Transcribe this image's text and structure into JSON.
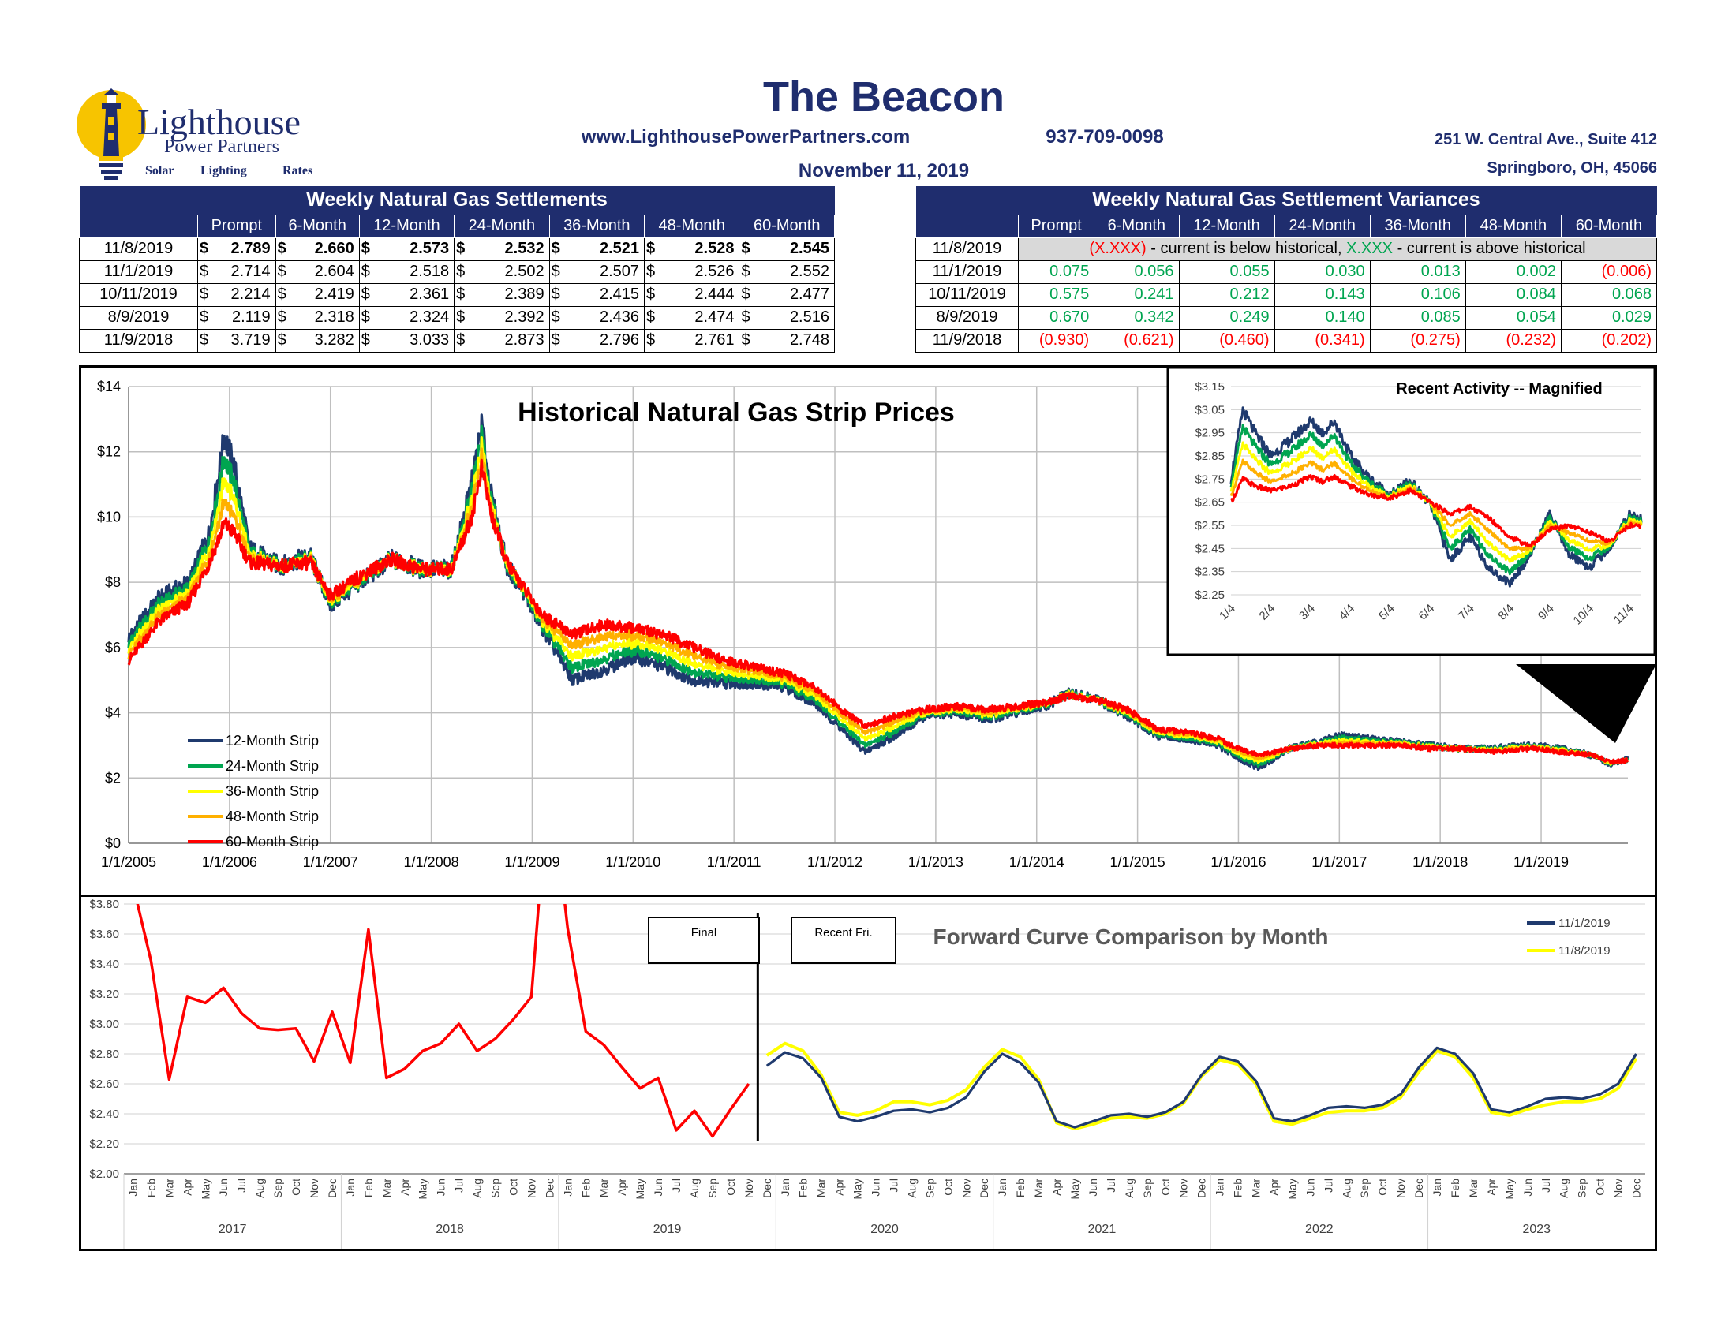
{
  "header": {
    "title": "The Beacon",
    "website": "www.LighthousePowerPartners.com",
    "phone": "937-709-0098",
    "date": "November 11, 2019",
    "address1": "251 W. Central Ave., Suite 412",
    "address2": "Springboro, OH, 45066"
  },
  "logo": {
    "name": "Lighthouse",
    "sub": "Power Partners",
    "tagline": [
      "Solar",
      "Lighting",
      "Rates"
    ],
    "colors": {
      "bulb": "#f7c400",
      "tower": "#1f2d6e"
    }
  },
  "colors": {
    "navy": "#1f2d6e",
    "m12": "#1f3a6e",
    "m24": "#00a550",
    "m36": "#ffff00",
    "m48": "#ffb000",
    "m60": "#ff0000",
    "positive": "#00a550",
    "negative": "#ff0000"
  },
  "settlements": {
    "title": "Weekly Natural Gas Settlements",
    "columns": [
      "Prompt",
      "6-Month",
      "12-Month",
      "24-Month",
      "36-Month",
      "48-Month",
      "60-Month"
    ],
    "currency": "$",
    "rows": [
      {
        "date": "11/8/2019",
        "bold": true,
        "values": [
          "2.789",
          "2.660",
          "2.573",
          "2.532",
          "2.521",
          "2.528",
          "2.545"
        ]
      },
      {
        "date": "11/1/2019",
        "bold": false,
        "values": [
          "2.714",
          "2.604",
          "2.518",
          "2.502",
          "2.507",
          "2.526",
          "2.552"
        ]
      },
      {
        "date": "10/11/2019",
        "bold": false,
        "values": [
          "2.214",
          "2.419",
          "2.361",
          "2.389",
          "2.415",
          "2.444",
          "2.477"
        ]
      },
      {
        "date": "8/9/2019",
        "bold": false,
        "values": [
          "2.119",
          "2.318",
          "2.324",
          "2.392",
          "2.436",
          "2.474",
          "2.516"
        ]
      },
      {
        "date": "11/9/2018",
        "bold": false,
        "values": [
          "3.719",
          "3.282",
          "3.033",
          "2.873",
          "2.796",
          "2.761",
          "2.748"
        ]
      }
    ]
  },
  "variances": {
    "title": "Weekly Natural Gas Settlement Variances",
    "columns": [
      "Prompt",
      "6-Month",
      "12-Month",
      "24-Month",
      "36-Month",
      "48-Month",
      "60-Month"
    ],
    "legend_row": {
      "date": "11/8/2019",
      "neg_sample": "(X.XXX)",
      "mid_text": " - current is below historical, ",
      "pos_sample": "X.XXX",
      "end_text": " - current is above historical"
    },
    "rows": [
      {
        "date": "11/1/2019",
        "values": [
          "0.075",
          "0.056",
          "0.055",
          "0.030",
          "0.013",
          "0.002",
          "(0.006)"
        ]
      },
      {
        "date": "10/11/2019",
        "values": [
          "0.575",
          "0.241",
          "0.212",
          "0.143",
          "0.106",
          "0.084",
          "0.068"
        ]
      },
      {
        "date": "8/9/2019",
        "values": [
          "0.670",
          "0.342",
          "0.249",
          "0.140",
          "0.085",
          "0.054",
          "0.029"
        ]
      },
      {
        "date": "11/9/2018",
        "values": [
          "(0.930)",
          "(0.621)",
          "(0.460)",
          "(0.341)",
          "(0.275)",
          "(0.232)",
          "(0.202)"
        ]
      }
    ]
  },
  "chart_data": [
    {
      "type": "line",
      "title": "Historical Natural Gas Strip Prices",
      "ylim": [
        0,
        14
      ],
      "y_ticks": [
        "$0",
        "$2",
        "$4",
        "$6",
        "$8",
        "$10",
        "$12",
        "$14"
      ],
      "x_ticks": [
        "1/1/2005",
        "1/1/2006",
        "1/1/2007",
        "1/1/2008",
        "1/1/2009",
        "1/1/2010",
        "1/1/2011",
        "1/1/2012",
        "1/1/2013",
        "1/1/2014",
        "1/1/2015",
        "1/1/2016",
        "1/1/2017",
        "1/1/2018",
        "1/1/2019"
      ],
      "x_range": [
        "2005-01-01",
        "2019-11-08"
      ],
      "legend": [
        "12-Month Strip",
        "24-Month Strip",
        "36-Month Strip",
        "48-Month Strip",
        "60-Month Strip"
      ],
      "legend_position": "bottom-left",
      "grid": true,
      "series_12m": {
        "x": [
          2005.0,
          2005.3,
          2005.6,
          2005.8,
          2005.95,
          2006.05,
          2006.2,
          2006.5,
          2006.8,
          2007.0,
          2007.3,
          2007.6,
          2007.9,
          2008.2,
          2008.4,
          2008.5,
          2008.6,
          2008.75,
          2008.9,
          2009.1,
          2009.4,
          2009.7,
          2010.0,
          2010.3,
          2010.6,
          2010.9,
          2011.2,
          2011.5,
          2011.8,
          2012.1,
          2012.3,
          2012.6,
          2012.9,
          2013.2,
          2013.5,
          2013.8,
          2014.1,
          2014.3,
          2014.6,
          2014.9,
          2015.2,
          2015.5,
          2015.8,
          2016.0,
          2016.2,
          2016.5,
          2016.8,
          2017.0,
          2017.3,
          2017.6,
          2017.9,
          2018.2,
          2018.5,
          2018.9,
          2019.2,
          2019.5,
          2019.7,
          2019.86
        ],
        "y": [
          6.3,
          7.5,
          8.0,
          9.5,
          12.5,
          11.5,
          9.0,
          8.5,
          8.8,
          7.3,
          8.0,
          8.7,
          8.4,
          8.4,
          11.0,
          12.8,
          10.5,
          8.5,
          7.8,
          6.6,
          5.0,
          5.3,
          5.7,
          5.4,
          5.0,
          4.9,
          4.9,
          4.8,
          4.3,
          3.4,
          2.8,
          3.3,
          3.9,
          4.0,
          3.8,
          4.0,
          4.2,
          4.6,
          4.4,
          3.9,
          3.3,
          3.2,
          3.0,
          2.6,
          2.3,
          2.9,
          3.1,
          3.3,
          3.2,
          3.1,
          3.0,
          2.9,
          2.9,
          3.0,
          2.9,
          2.7,
          2.4,
          2.573
        ]
      },
      "series_60m": {
        "x": [
          2005.0,
          2005.3,
          2005.6,
          2005.8,
          2005.95,
          2006.05,
          2006.2,
          2006.5,
          2006.8,
          2007.0,
          2007.3,
          2007.6,
          2007.9,
          2008.2,
          2008.4,
          2008.5,
          2008.6,
          2008.75,
          2008.9,
          2009.1,
          2009.4,
          2009.7,
          2010.0,
          2010.3,
          2010.6,
          2010.9,
          2011.2,
          2011.5,
          2011.8,
          2012.1,
          2012.3,
          2012.6,
          2012.9,
          2013.2,
          2013.5,
          2013.8,
          2014.1,
          2014.3,
          2014.6,
          2014.9,
          2015.2,
          2015.5,
          2015.8,
          2016.0,
          2016.2,
          2016.5,
          2016.8,
          2017.0,
          2017.3,
          2017.6,
          2017.9,
          2018.2,
          2018.5,
          2018.9,
          2019.2,
          2019.5,
          2019.7,
          2019.86
        ],
        "y": [
          5.6,
          6.8,
          7.4,
          8.6,
          9.8,
          9.5,
          8.6,
          8.5,
          8.6,
          7.6,
          8.2,
          8.7,
          8.4,
          8.4,
          10.0,
          11.5,
          10.0,
          8.6,
          7.9,
          7.0,
          6.4,
          6.7,
          6.6,
          6.4,
          6.0,
          5.6,
          5.4,
          5.2,
          4.8,
          4.0,
          3.6,
          3.9,
          4.1,
          4.2,
          4.1,
          4.2,
          4.3,
          4.5,
          4.4,
          4.1,
          3.5,
          3.4,
          3.2,
          2.9,
          2.7,
          2.9,
          3.0,
          3.0,
          3.0,
          3.0,
          2.9,
          2.9,
          2.8,
          2.9,
          2.8,
          2.7,
          2.5,
          2.545
        ]
      }
    },
    {
      "type": "line",
      "title": "Recent Activity -- Magnified",
      "ylim": [
        2.25,
        3.15
      ],
      "y_ticks": [
        "$2.25",
        "$2.35",
        "$2.45",
        "$2.55",
        "$2.65",
        "$2.75",
        "$2.85",
        "$2.95",
        "$3.05",
        "$3.15"
      ],
      "x_ticks": [
        "1/4",
        "2/4",
        "3/4",
        "4/4",
        "5/4",
        "6/4",
        "7/4",
        "8/4",
        "9/4",
        "10/4",
        "11/4"
      ],
      "series_12m": {
        "x": [
          0,
          0.3,
          0.6,
          1.0,
          1.5,
          2.0,
          2.3,
          2.6,
          3.0,
          3.5,
          4.0,
          4.5,
          5.0,
          5.5,
          6.0,
          6.5,
          7.0,
          7.5,
          8.0,
          8.5,
          9.0,
          9.5,
          10.0,
          10.3
        ],
        "y": [
          2.75,
          3.05,
          2.95,
          2.85,
          2.92,
          3.0,
          2.95,
          3.0,
          2.85,
          2.75,
          2.68,
          2.74,
          2.64,
          2.4,
          2.5,
          2.36,
          2.3,
          2.42,
          2.6,
          2.42,
          2.37,
          2.45,
          2.6,
          2.573
        ]
      },
      "series_60m": {
        "x": [
          0,
          0.3,
          0.6,
          1.0,
          1.5,
          2.0,
          2.3,
          2.6,
          3.0,
          3.5,
          4.0,
          4.5,
          5.0,
          5.5,
          6.0,
          6.5,
          7.0,
          7.5,
          8.0,
          8.5,
          9.0,
          9.5,
          10.0,
          10.3
        ],
        "y": [
          2.65,
          2.75,
          2.72,
          2.7,
          2.72,
          2.76,
          2.74,
          2.76,
          2.72,
          2.68,
          2.67,
          2.7,
          2.65,
          2.6,
          2.63,
          2.58,
          2.5,
          2.46,
          2.53,
          2.55,
          2.52,
          2.48,
          2.55,
          2.545
        ]
      }
    },
    {
      "type": "line",
      "title": "Forward Curve Comparison by Month",
      "ylim": [
        2.0,
        3.8
      ],
      "y_ticks": [
        "$2.00",
        "$2.20",
        "$2.40",
        "$2.60",
        "$2.80",
        "$3.00",
        "$3.20",
        "$3.40",
        "$3.60",
        "$3.80"
      ],
      "month_labels": [
        "Jan",
        "Feb",
        "Mar",
        "Apr",
        "May",
        "Jun",
        "Jul",
        "Aug",
        "Sep",
        "Oct",
        "Nov",
        "Dec"
      ],
      "year_labels": [
        "2017",
        "2018",
        "2019",
        "2020",
        "2021",
        "2022",
        "2023"
      ],
      "annotations": [
        "Final",
        "Recent Fri."
      ],
      "legend": [
        "11/1/2019",
        "11/8/2019"
      ],
      "final_settlements": [
        3.93,
        3.42,
        2.63,
        3.18,
        3.14,
        3.24,
        3.07,
        2.97,
        2.96,
        2.97,
        2.75,
        3.08,
        2.74,
        3.63,
        2.64,
        2.7,
        2.82,
        2.87,
        3.0,
        2.82,
        2.9,
        3.03,
        3.18,
        4.72,
        3.64,
        2.95,
        2.86,
        2.71,
        2.57,
        2.64,
        2.29,
        2.42,
        2.25,
        2.43,
        2.6
      ],
      "forward_11_1": [
        2.72,
        2.81,
        2.77,
        2.64,
        2.38,
        2.35,
        2.38,
        2.42,
        2.43,
        2.41,
        2.44,
        2.51,
        2.68,
        2.8,
        2.74,
        2.61,
        2.35,
        2.31,
        2.35,
        2.39,
        2.4,
        2.38,
        2.41,
        2.48,
        2.66,
        2.78,
        2.75,
        2.62,
        2.37,
        2.35,
        2.39,
        2.44,
        2.45,
        2.44,
        2.46,
        2.53,
        2.71,
        2.84,
        2.8,
        2.67,
        2.43,
        2.41,
        2.45,
        2.5,
        2.51,
        2.5,
        2.53,
        2.6,
        2.8
      ],
      "forward_11_8": [
        2.79,
        2.87,
        2.82,
        2.66,
        2.41,
        2.39,
        2.42,
        2.48,
        2.48,
        2.46,
        2.49,
        2.56,
        2.71,
        2.83,
        2.78,
        2.63,
        2.34,
        2.3,
        2.33,
        2.37,
        2.38,
        2.37,
        2.4,
        2.47,
        2.65,
        2.76,
        2.73,
        2.6,
        2.35,
        2.33,
        2.37,
        2.41,
        2.42,
        2.42,
        2.44,
        2.51,
        2.68,
        2.82,
        2.78,
        2.64,
        2.41,
        2.39,
        2.43,
        2.46,
        2.48,
        2.48,
        2.5,
        2.57,
        2.77
      ]
    }
  ]
}
